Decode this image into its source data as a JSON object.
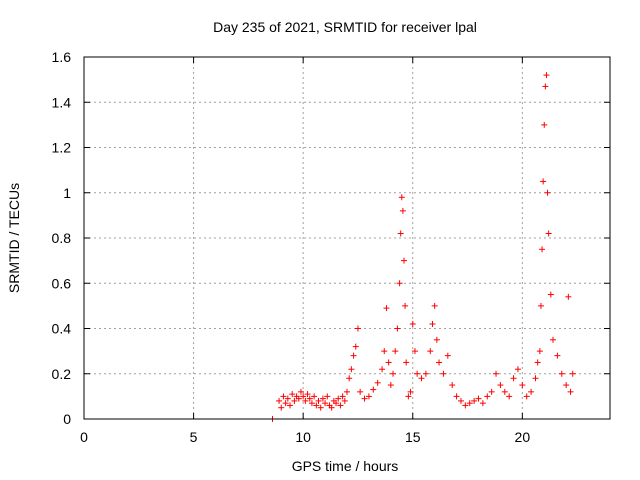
{
  "chart_data": {
    "type": "scatter",
    "title": "Day 235 of 2021, SRMTID for receiver lpal",
    "xlabel": "GPS time / hours",
    "ylabel": "SRMTID / TECUs",
    "xlim": [
      0,
      24
    ],
    "ylim": [
      0,
      1.6
    ],
    "xticks": [
      0,
      5,
      10,
      15,
      20
    ],
    "xtick_labels": [
      "0",
      "5",
      "10",
      "15",
      "20"
    ],
    "yticks": [
      0,
      0.2,
      0.4,
      0.6,
      0.8,
      1.0,
      1.2,
      1.4,
      1.6
    ],
    "ytick_labels": [
      "0",
      "0.2",
      "0.4",
      "0.6",
      "0.8",
      "1",
      "1.2",
      "1.4",
      "1.6"
    ],
    "grid": true,
    "marker_color": "#ff0000",
    "series": [
      {
        "name": "SRMTID",
        "marker": "plus",
        "x": [
          8.6,
          8.9,
          9.0,
          9.1,
          9.2,
          9.3,
          9.4,
          9.5,
          9.6,
          9.7,
          9.8,
          9.9,
          10.0,
          10.1,
          10.2,
          10.3,
          10.4,
          10.5,
          10.6,
          10.7,
          10.8,
          10.9,
          11.0,
          11.1,
          11.2,
          11.3,
          11.4,
          11.5,
          11.6,
          11.7,
          11.8,
          11.9,
          12.0,
          12.1,
          12.2,
          12.3,
          12.4,
          12.5,
          12.6,
          12.8,
          13.0,
          13.2,
          13.4,
          13.6,
          13.7,
          13.8,
          13.9,
          14.0,
          14.1,
          14.2,
          14.3,
          14.4,
          14.45,
          14.5,
          14.55,
          14.6,
          14.65,
          14.7,
          14.8,
          14.9,
          15.0,
          15.1,
          15.2,
          15.4,
          15.6,
          15.8,
          15.9,
          16.0,
          16.1,
          16.2,
          16.4,
          16.6,
          16.8,
          17.0,
          17.2,
          17.4,
          17.6,
          17.8,
          18.0,
          18.2,
          18.4,
          18.6,
          18.8,
          19.0,
          19.2,
          19.4,
          19.6,
          19.8,
          20.0,
          20.2,
          20.4,
          20.6,
          20.7,
          20.8,
          20.85,
          20.9,
          20.95,
          21.0,
          21.05,
          21.1,
          21.15,
          21.2,
          21.3,
          21.4,
          21.6,
          21.8,
          22.0,
          22.1,
          22.2,
          22.3
        ],
        "y": [
          0.0,
          0.08,
          0.05,
          0.1,
          0.07,
          0.09,
          0.06,
          0.11,
          0.08,
          0.1,
          0.09,
          0.12,
          0.1,
          0.08,
          0.11,
          0.09,
          0.07,
          0.1,
          0.06,
          0.08,
          0.05,
          0.09,
          0.07,
          0.1,
          0.06,
          0.05,
          0.08,
          0.07,
          0.09,
          0.06,
          0.1,
          0.08,
          0.12,
          0.18,
          0.22,
          0.28,
          0.32,
          0.4,
          0.12,
          0.09,
          0.1,
          0.13,
          0.16,
          0.22,
          0.3,
          0.49,
          0.25,
          0.15,
          0.2,
          0.3,
          0.4,
          0.6,
          0.82,
          0.98,
          0.92,
          0.7,
          0.5,
          0.25,
          0.1,
          0.12,
          0.42,
          0.3,
          0.2,
          0.18,
          0.2,
          0.3,
          0.42,
          0.5,
          0.35,
          0.25,
          0.2,
          0.28,
          0.15,
          0.1,
          0.08,
          0.06,
          0.07,
          0.08,
          0.09,
          0.07,
          0.1,
          0.12,
          0.2,
          0.15,
          0.12,
          0.1,
          0.18,
          0.22,
          0.15,
          0.1,
          0.12,
          0.18,
          0.25,
          0.3,
          0.5,
          0.75,
          1.05,
          1.3,
          1.47,
          1.52,
          1.0,
          0.82,
          0.55,
          0.35,
          0.28,
          0.2,
          0.15,
          0.54,
          0.12,
          0.2
        ]
      }
    ]
  }
}
